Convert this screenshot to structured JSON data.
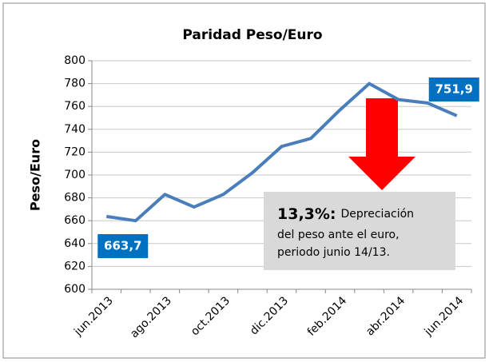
{
  "chart_data": {
    "type": "line",
    "title": "Paridad Peso/Euro",
    "y_label": "Peso/Euro",
    "categories": [
      "jun.2013",
      null,
      "ago.2013",
      null,
      "oct.2013",
      null,
      "dic.2013",
      null,
      "feb.2014",
      null,
      "abr.2014",
      null,
      "jun.2014"
    ],
    "series": [
      {
        "name": "Peso/Euro",
        "color": "#4a7ebb",
        "values": [
          663.7,
          660,
          683,
          672,
          683,
          702,
          725,
          732,
          757,
          780,
          766,
          763,
          751.9
        ],
        "value_labels": [
          "663,7",
          null,
          null,
          null,
          null,
          null,
          null,
          null,
          null,
          null,
          null,
          null,
          "751,9"
        ]
      }
    ],
    "ylim": [
      600,
      800
    ],
    "yticks": [
      600,
      620,
      640,
      660,
      680,
      700,
      720,
      740,
      760,
      780,
      800
    ],
    "grid": true,
    "annotation": {
      "lead": "13,3%:",
      "lines": [
        "Depreciación",
        "del peso ante el euro,",
        "periodo junio 14/13."
      ]
    }
  }
}
